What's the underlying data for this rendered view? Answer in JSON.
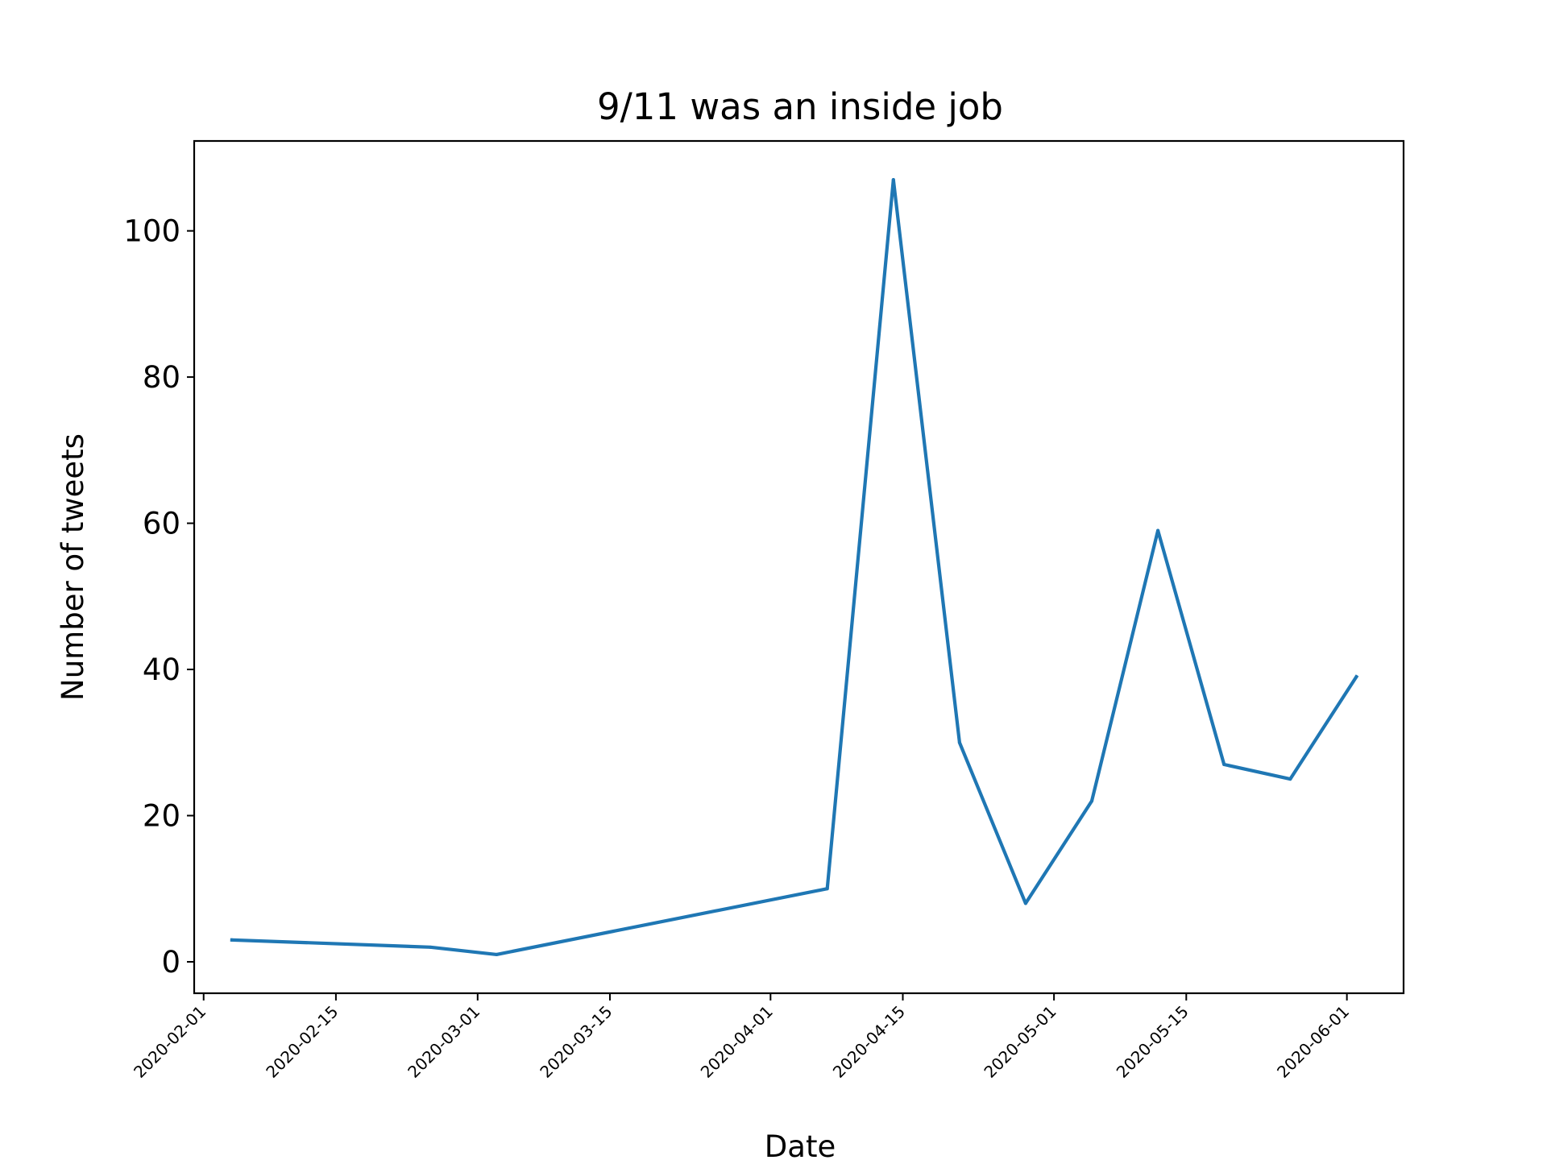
{
  "chart_data": {
    "type": "line",
    "title": "9/11 was an inside job",
    "xlabel": "Date",
    "ylabel": "Number of tweets",
    "x": [
      "2020-02-04",
      "2020-02-25",
      "2020-03-03",
      "2020-04-07",
      "2020-04-14",
      "2020-04-21",
      "2020-04-28",
      "2020-05-05",
      "2020-05-12",
      "2020-05-19",
      "2020-05-26",
      "2020-06-02"
    ],
    "series": [
      {
        "values": [
          3,
          2,
          1,
          10,
          107,
          30,
          8,
          22,
          59,
          27,
          25,
          39
        ],
        "color": "#1f77b4"
      }
    ],
    "xlim": [
      "2020-01-31",
      "2020-06-07"
    ],
    "ylim": [
      -4.3,
      112.3
    ],
    "x_ticks": [
      "2020-02-01",
      "2020-02-15",
      "2020-03-01",
      "2020-03-15",
      "2020-04-01",
      "2020-04-15",
      "2020-05-01",
      "2020-05-15",
      "2020-06-01"
    ],
    "y_ticks": [
      0,
      20,
      40,
      60,
      80,
      100
    ],
    "grid": false,
    "legend": "none"
  }
}
